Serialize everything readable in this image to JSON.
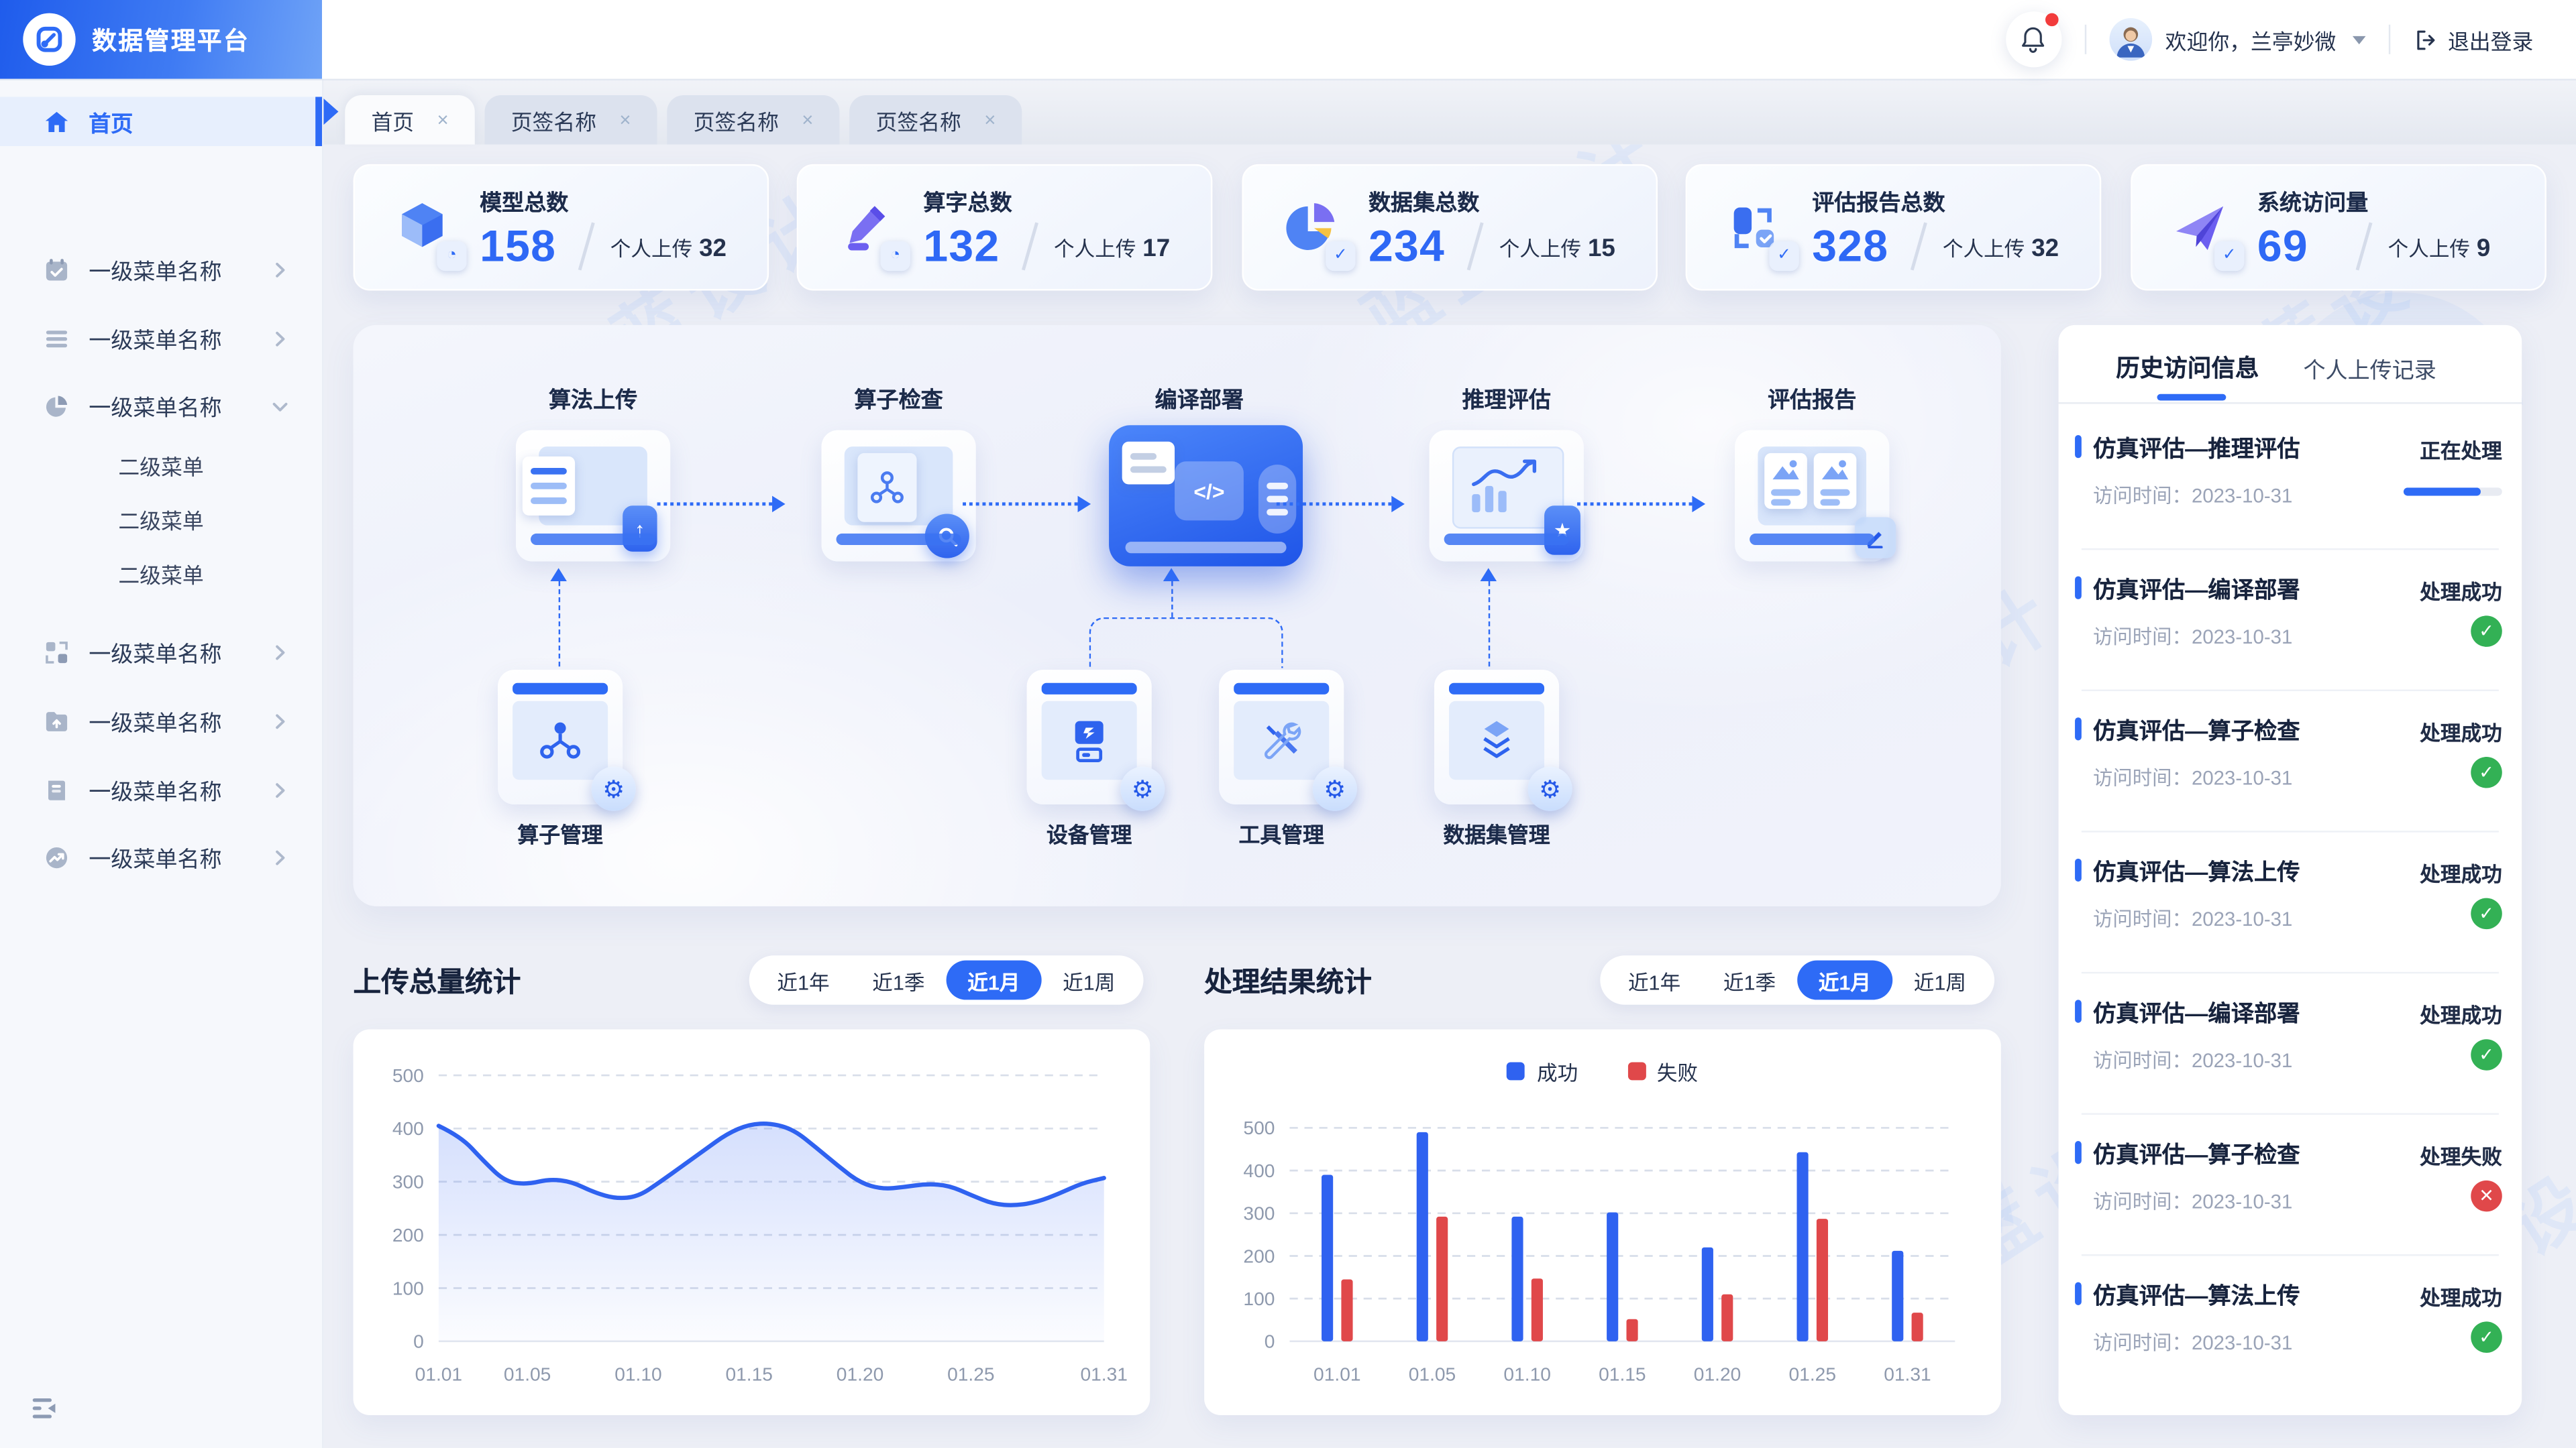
{
  "app": {
    "title": "数据管理平台"
  },
  "topbar": {
    "welcome": "欢迎你，兰亭妙微",
    "logout": "退出登录"
  },
  "sidebar": {
    "home": "首页",
    "items": [
      {
        "label": "一级菜单名称",
        "icon": "calendar-check-icon",
        "state": "collapsed"
      },
      {
        "label": "一级菜单名称",
        "icon": "list-icon",
        "state": "collapsed"
      },
      {
        "label": "一级菜单名称",
        "icon": "pie-chart-icon",
        "state": "expanded"
      },
      {
        "label": "一级菜单名称",
        "icon": "blocks-icon",
        "state": "collapsed"
      },
      {
        "label": "一级菜单名称",
        "icon": "folder-upload-icon",
        "state": "collapsed"
      },
      {
        "label": "一级菜单名称",
        "icon": "document-icon",
        "state": "collapsed"
      },
      {
        "label": "一级菜单名称",
        "icon": "trend-icon",
        "state": "collapsed"
      }
    ],
    "submenu": [
      "二级菜单",
      "二级菜单",
      "二级菜单"
    ]
  },
  "tabs": {
    "close_glyph": "×",
    "items": [
      {
        "label": "首页",
        "active": true
      },
      {
        "label": "页签名称",
        "active": false
      },
      {
        "label": "页签名称",
        "active": false
      },
      {
        "label": "页签名称",
        "active": false
      }
    ]
  },
  "stats": {
    "sub_label": "个人上传",
    "items": [
      {
        "title": "模型总数",
        "value": "158",
        "sub_value": "32",
        "icon": "cube-icon"
      },
      {
        "title": "算字总数",
        "value": "132",
        "sub_value": "17",
        "icon": "pen-icon"
      },
      {
        "title": "数据集总数",
        "value": "234",
        "sub_value": "15",
        "icon": "pie-icon"
      },
      {
        "title": "评估报告总数",
        "value": "328",
        "sub_value": "32",
        "icon": "report-blocks-icon"
      },
      {
        "title": "系统访问量",
        "value": "69",
        "sub_value": "9",
        "icon": "paper-plane-icon"
      }
    ]
  },
  "flow": {
    "steps": [
      {
        "label": "算法上传",
        "active": false
      },
      {
        "label": "算子检查",
        "active": false
      },
      {
        "label": "编译部署",
        "active": true
      },
      {
        "label": "推理评估",
        "active": false
      },
      {
        "label": "评估报告",
        "active": false
      }
    ],
    "managers": [
      {
        "label": "算子管理",
        "icon": "node-graph-icon"
      },
      {
        "label": "设备管理",
        "icon": "device-icon"
      },
      {
        "label": "工具管理",
        "icon": "tools-icon"
      },
      {
        "label": "数据集管理",
        "icon": "layers-icon"
      }
    ]
  },
  "sections": {
    "upload_title": "上传总量统计",
    "result_title": "处理结果统计",
    "filters": [
      "近1年",
      "近1季",
      "近1月",
      "近1周"
    ],
    "active_filter": "近1月"
  },
  "chart_data": [
    {
      "type": "line",
      "title": "上传总量统计",
      "x_days": [
        1,
        2,
        3,
        4,
        5,
        6,
        7,
        8,
        9,
        10,
        11,
        12,
        13,
        14,
        15,
        16,
        17,
        18,
        19,
        20,
        21,
        22,
        23,
        24,
        25,
        26,
        27,
        28,
        29,
        30,
        31
      ],
      "values": [
        405,
        385,
        340,
        300,
        295,
        305,
        300,
        280,
        268,
        272,
        300,
        330,
        360,
        390,
        408,
        410,
        398,
        365,
        330,
        298,
        286,
        290,
        296,
        293,
        275,
        258,
        255,
        262,
        278,
        297,
        307
      ],
      "tick_days": [
        1,
        5,
        10,
        15,
        20,
        25,
        31
      ],
      "tick_labels": [
        "01.01",
        "01.05",
        "01.10",
        "01.15",
        "01.20",
        "01.25",
        "01.31"
      ],
      "ylim": [
        0,
        500
      ],
      "y_step": 100,
      "grid": "dashed",
      "line_color": "#2F62F0",
      "area_fill": true,
      "legend_position": "none"
    },
    {
      "type": "bar",
      "title": "处理结果统计",
      "categories": [
        "01.01",
        "01.05",
        "01.10",
        "01.15",
        "01.20",
        "01.25",
        "01.31"
      ],
      "series": [
        {
          "name": "成功",
          "color": "#2F62F0",
          "values": [
            390,
            490,
            292,
            302,
            220,
            443,
            212
          ]
        },
        {
          "name": "失败",
          "color": "#E0484A",
          "values": [
            145,
            292,
            147,
            52,
            110,
            287,
            67
          ]
        }
      ],
      "ylim": [
        0,
        500
      ],
      "y_step": 100,
      "grid": "dashed",
      "legend_position": "top-center"
    }
  ],
  "history": {
    "tab_active": "历史访问信息",
    "tab_other": "个人上传记录",
    "visit_label": "访问时间：",
    "items": [
      {
        "title": "仿真评估—推理评估",
        "status": "正在处理",
        "date": "2023-10-31",
        "indicator": "progress",
        "progress": 78
      },
      {
        "title": "仿真评估—编译部署",
        "status": "处理成功",
        "date": "2023-10-31",
        "indicator": "success"
      },
      {
        "title": "仿真评估—算子检查",
        "status": "处理成功",
        "date": "2023-10-31",
        "indicator": "success"
      },
      {
        "title": "仿真评估—算法上传",
        "status": "处理成功",
        "date": "2023-10-31",
        "indicator": "success"
      },
      {
        "title": "仿真评估—编译部署",
        "status": "处理成功",
        "date": "2023-10-31",
        "indicator": "success"
      },
      {
        "title": "仿真评估—算子检查",
        "status": "处理失败",
        "date": "2023-10-31",
        "indicator": "fail"
      },
      {
        "title": "仿真评估—算法上传",
        "status": "处理成功",
        "date": "2023-10-31",
        "indicator": "success"
      }
    ],
    "check_glyph": "✓",
    "cross_glyph": "✕"
  },
  "watermark": "蓝蓝设计",
  "colors": {
    "primary": "#2E6BF6",
    "navy": "#17233D",
    "success_green": "#33B155",
    "fail_red": "#E0484A",
    "gray_text": "#9AA3B7"
  }
}
